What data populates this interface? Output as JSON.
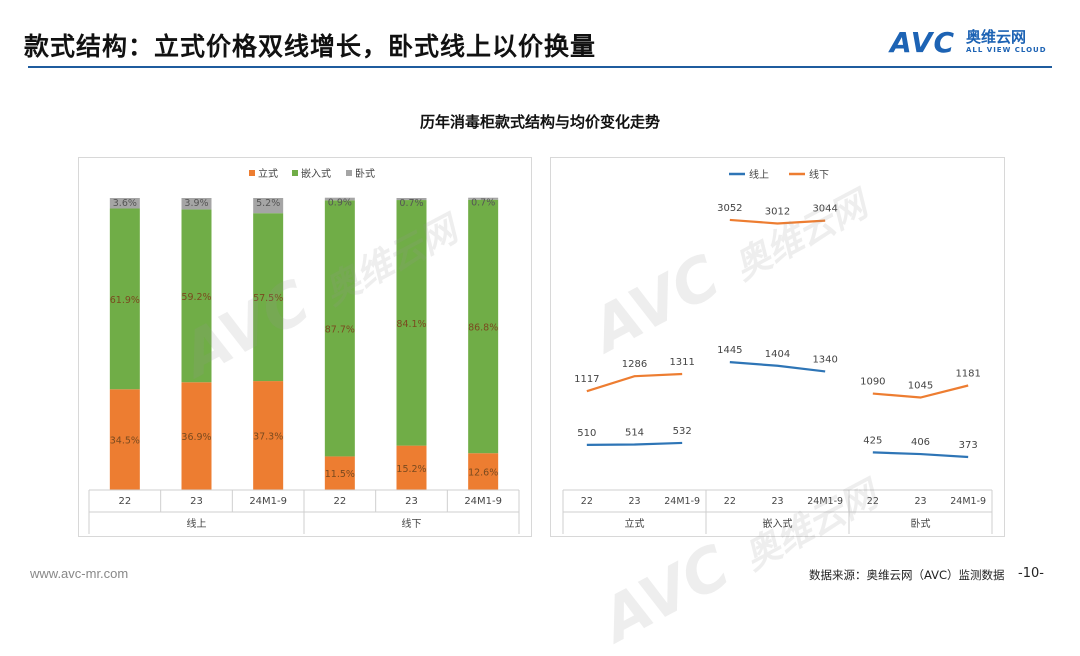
{
  "header": {
    "title": "款式结构：立式价格双线增长，卧式线上以价换量",
    "logo_mark": "AVC",
    "logo_cn": "奥维云网",
    "logo_en": "ALL VIEW CLOUD"
  },
  "chart_title": "历年消毒柜款式结构与均价变化走势",
  "footer": {
    "url": "www.avc-mr.com",
    "source": "数据来源：奥维云网（AVC）监测数据",
    "page": "-10-"
  },
  "watermark": {
    "mark": "AVC",
    "cn": "奥维云网",
    "en": "ALL VIEW CLOUD"
  },
  "chart_data": [
    {
      "type": "bar",
      "stacked": true,
      "percent": true,
      "legend_position": "top",
      "categories": [
        "22",
        "23",
        "24M1-9",
        "22",
        "23",
        "24M1-9"
      ],
      "groups": [
        {
          "label": "线上",
          "categories": [
            "22",
            "23",
            "24M1-9"
          ]
        },
        {
          "label": "线下",
          "categories": [
            "22",
            "23",
            "24M1-9"
          ]
        }
      ],
      "series": [
        {
          "name": "立式",
          "color": "#ed7d31",
          "values": [
            34.5,
            36.9,
            37.3,
            11.5,
            15.2,
            12.6
          ],
          "labels": [
            "34.5%",
            "36.9%",
            "37.3%",
            "11.5%",
            "15.2%",
            "12.6%"
          ]
        },
        {
          "name": "嵌入式",
          "color": "#70ad47",
          "values": [
            61.9,
            59.2,
            57.5,
            87.7,
            84.1,
            86.8
          ],
          "labels": [
            "61.9%",
            "59.2%",
            "57.5%",
            "87.7%",
            "84.1%",
            "86.8%"
          ]
        },
        {
          "name": "卧式",
          "color": "#a5a5a5",
          "values": [
            3.6,
            3.9,
            5.2,
            0.9,
            0.7,
            0.7
          ],
          "labels": [
            "3.6%",
            "3.9%",
            "5.2%",
            "0.9%",
            "0.7%",
            "0.7%"
          ]
        }
      ]
    },
    {
      "type": "line",
      "legend_position": "top",
      "groups": [
        {
          "label": "立式",
          "categories": [
            "22",
            "23",
            "24M1-9"
          ]
        },
        {
          "label": "嵌入式",
          "categories": [
            "22",
            "23",
            "24M1-9"
          ]
        },
        {
          "label": "卧式",
          "categories": [
            "22",
            "23",
            "24M1-9"
          ]
        }
      ],
      "ylim": [
        0,
        3300
      ],
      "series": [
        {
          "name": "线上",
          "color": "#2e75b6",
          "values": [
            [
              510,
              514,
              532
            ],
            [
              1445,
              1404,
              1340
            ],
            [
              425,
              406,
              373
            ]
          ]
        },
        {
          "name": "线下",
          "color": "#ed7d31",
          "values": [
            [
              1117,
              1286,
              1311
            ],
            [
              3052,
              3012,
              3044
            ],
            [
              1090,
              1045,
              1181
            ]
          ]
        }
      ]
    }
  ]
}
